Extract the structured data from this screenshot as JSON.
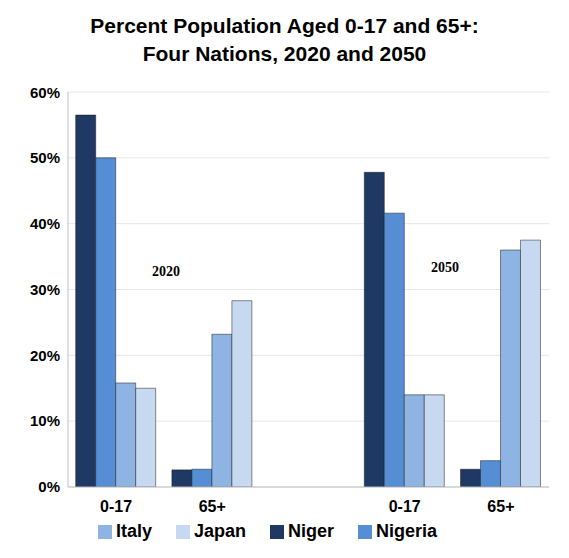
{
  "chart_data": {
    "type": "bar",
    "title": "Percent Population Aged 0-17 and 65+: Four Nations, 2020 and 2050",
    "categories": [
      "0-17",
      "65+",
      null,
      "0-17",
      "65+"
    ],
    "series": [
      {
        "name": "Niger",
        "color": "#1f3864",
        "values": [
          56.5,
          2.6,
          null,
          47.8,
          2.7
        ]
      },
      {
        "name": "Nigeria",
        "color": "#558ed5",
        "values": [
          50,
          2.7,
          null,
          41.6,
          4
        ]
      },
      {
        "name": "Italy",
        "color": "#8eb4e3",
        "values": [
          15.8,
          23.2,
          null,
          14,
          36
        ]
      },
      {
        "name": "Japan",
        "color": "#c6d9f1",
        "values": [
          15,
          28.3,
          null,
          14,
          37.5
        ]
      }
    ],
    "annotations": [
      "2020",
      "2050"
    ],
    "ylim": [
      0,
      60
    ],
    "yticks": [
      {
        "value": 0,
        "label": "0%"
      },
      {
        "value": 10,
        "label": "10%"
      },
      {
        "value": 20,
        "label": "20%"
      },
      {
        "value": 30,
        "label": "30%"
      },
      {
        "value": 40,
        "label": "40%"
      },
      {
        "value": 50,
        "label": "50%"
      },
      {
        "value": 60,
        "label": "60%"
      }
    ],
    "grid": true,
    "legend": "bottom"
  }
}
